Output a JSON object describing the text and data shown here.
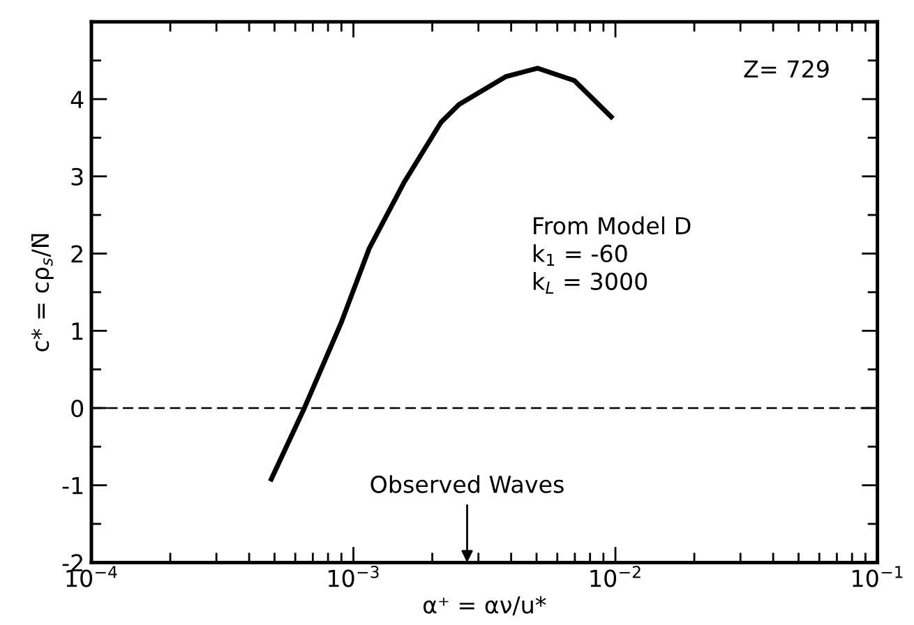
{
  "chart_data": {
    "type": "line",
    "xlabel": "α⁺ = αν/u*",
    "ylabel": "c* = cρ$_{s}$/N̄",
    "x": [
      0.000486,
      0.00065,
      0.000897,
      0.00115,
      0.00156,
      0.00216,
      0.00253,
      0.00381,
      0.00504,
      0.00697,
      0.00964
    ],
    "series": [
      {
        "color": "#000000",
        "values": [
          -0.92,
          0,
          1.1,
          2.07,
          2.92,
          3.7,
          3.93,
          4.29,
          4.4,
          4.24,
          3.77
        ]
      }
    ],
    "log": "x",
    "xlim": [
      0.0001,
      0.1
    ],
    "xticks": [
      {
        "value": 0.0001,
        "label": "10$^{−4}$"
      },
      {
        "value": 0.001,
        "label": "10$^{−3}$"
      },
      {
        "value": 0.01,
        "label": "10$^{−2}$"
      },
      {
        "value": 0.1,
        "label": "10$^{−1}$"
      }
    ],
    "ylim": [
      -2,
      5
    ],
    "yticks": [
      -2,
      -1,
      0,
      1,
      2,
      3,
      4
    ],
    "ref_lines": [
      {
        "axis": "y",
        "value": 0,
        "color": "#000000",
        "line_style": "dashed"
      }
    ],
    "annotations": [
      {
        "text": "Z= 729"
      },
      {
        "text": "From Model D\nk$_{1}$ = -60\nk$_{L}$ = 3000"
      },
      "Observed Waves"
    ],
    "marker": "none",
    "line_style": "solid",
    "grid": false
  }
}
